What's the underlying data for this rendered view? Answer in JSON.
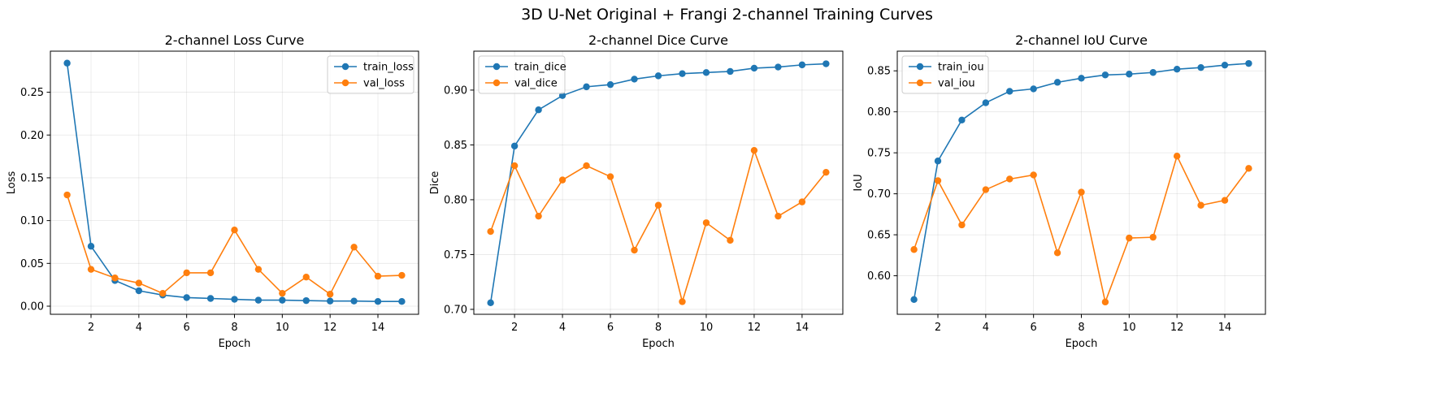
{
  "figure": {
    "title": "3D U-Net Original + Frangi 2-channel Training Curves"
  },
  "chart_data": [
    {
      "type": "line",
      "title": "2-channel Loss Curve",
      "xlabel": "Epoch",
      "ylabel": "Loss",
      "x": [
        1,
        2,
        3,
        4,
        5,
        6,
        7,
        8,
        9,
        10,
        11,
        12,
        13,
        14,
        15
      ],
      "xlim": [
        0.3,
        15.7
      ],
      "ylim": [
        -0.0095,
        0.298
      ],
      "xticks": [
        2,
        4,
        6,
        8,
        10,
        12,
        14
      ],
      "yticks": [
        0.0,
        0.05,
        0.1,
        0.15,
        0.2,
        0.25
      ],
      "ytick_decimals": 2,
      "grid": true,
      "legend": "upper right",
      "series": [
        {
          "name": "train_loss",
          "color": "#1f77b4",
          "values": [
            0.284,
            0.07,
            0.03,
            0.018,
            0.013,
            0.01,
            0.009,
            0.008,
            0.007,
            0.007,
            0.0065,
            0.006,
            0.006,
            0.0055,
            0.0055
          ]
        },
        {
          "name": "val_loss",
          "color": "#ff7f0e",
          "values": [
            0.13,
            0.043,
            0.033,
            0.027,
            0.015,
            0.039,
            0.039,
            0.089,
            0.043,
            0.015,
            0.034,
            0.014,
            0.069,
            0.035,
            0.036
          ]
        }
      ]
    },
    {
      "type": "line",
      "title": "2-channel Dice Curve",
      "xlabel": "Epoch",
      "ylabel": "Dice",
      "x": [
        1,
        2,
        3,
        4,
        5,
        6,
        7,
        8,
        9,
        10,
        11,
        12,
        13,
        14,
        15
      ],
      "xlim": [
        0.3,
        15.7
      ],
      "ylim": [
        0.6955,
        0.9355
      ],
      "xticks": [
        2,
        4,
        6,
        8,
        10,
        12,
        14
      ],
      "yticks": [
        0.7,
        0.75,
        0.8,
        0.85,
        0.9
      ],
      "ytick_decimals": 2,
      "grid": true,
      "legend": "upper left",
      "series": [
        {
          "name": "train_dice",
          "color": "#1f77b4",
          "values": [
            0.706,
            0.849,
            0.882,
            0.895,
            0.903,
            0.905,
            0.91,
            0.913,
            0.915,
            0.916,
            0.917,
            0.92,
            0.921,
            0.923,
            0.924
          ]
        },
        {
          "name": "val_dice",
          "color": "#ff7f0e",
          "values": [
            0.771,
            0.831,
            0.785,
            0.818,
            0.831,
            0.821,
            0.754,
            0.795,
            0.707,
            0.779,
            0.763,
            0.845,
            0.785,
            0.798,
            0.825
          ]
        }
      ]
    },
    {
      "type": "line",
      "title": "2-channel IoU Curve",
      "xlabel": "Epoch",
      "ylabel": "IoU",
      "x": [
        1,
        2,
        3,
        4,
        5,
        6,
        7,
        8,
        9,
        10,
        11,
        12,
        13,
        14,
        15
      ],
      "xlim": [
        0.3,
        15.7
      ],
      "ylim": [
        0.553,
        0.874
      ],
      "xticks": [
        2,
        4,
        6,
        8,
        10,
        12,
        14
      ],
      "yticks": [
        0.6,
        0.65,
        0.7,
        0.75,
        0.8,
        0.85
      ],
      "ytick_decimals": 2,
      "grid": true,
      "legend": "upper left",
      "series": [
        {
          "name": "train_iou",
          "color": "#1f77b4",
          "values": [
            0.571,
            0.74,
            0.79,
            0.811,
            0.825,
            0.828,
            0.836,
            0.841,
            0.845,
            0.846,
            0.848,
            0.852,
            0.854,
            0.857,
            0.859
          ]
        },
        {
          "name": "val_iou",
          "color": "#ff7f0e",
          "values": [
            0.632,
            0.716,
            0.662,
            0.705,
            0.718,
            0.723,
            0.628,
            0.702,
            0.568,
            0.646,
            0.647,
            0.746,
            0.686,
            0.692,
            0.731
          ]
        }
      ]
    }
  ]
}
